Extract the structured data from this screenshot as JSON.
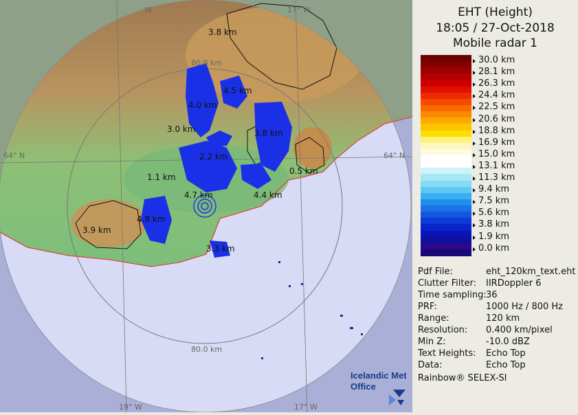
{
  "header": {
    "line1": "EHT (Height)",
    "line2": "18:05 / 27-Oct-2018",
    "line3": "Mobile radar 1"
  },
  "legend": {
    "labels": [
      "30.0 km",
      "28.1 km",
      "26.3 km",
      "24.4 km",
      "22.5 km",
      "20.6 km",
      "18.8 km",
      "16.9 km",
      "15.0 km",
      "13.1 km",
      "11.3 km",
      "9.4 km",
      "7.5 km",
      "5.6 km",
      "3.8 km",
      "1.9 km",
      "0.0 km"
    ],
    "colors": [
      "#6b0000",
      "#830000",
      "#9d0000",
      "#b40000",
      "#cc0000",
      "#e01000",
      "#ee2a00",
      "#f54a00",
      "#fa6a00",
      "#fc8a00",
      "#fda800",
      "#fdc400",
      "#fede00",
      "#fef07c",
      "#fdf7bf",
      "#fefbe2",
      "#ffffff",
      "#ffffff",
      "#cef4fa",
      "#a8e8f6",
      "#84dcf4",
      "#5fc8f2",
      "#3ab0f0",
      "#2290ea",
      "#1a72e6",
      "#1456de",
      "#0e3ad6",
      "#0a24c8",
      "#0a14b8",
      "#10109c",
      "#2a0a8a",
      "#1a0878"
    ]
  },
  "map": {
    "labels": {
      "lon_19": "19° W",
      "lon_17": "17° W",
      "lon_19_top": "W",
      "lon_17_top": "17° W",
      "lat_64_left": "64° N",
      "lat_64_right": "64° N",
      "range_top": "80.0 km",
      "range_bottom": "80.0 km"
    },
    "echo_heights": [
      "3.8 km",
      "4.5 km",
      "4.0 km",
      "3.0 km",
      "3.8 km",
      "2.2 km",
      "0.5 km",
      "1.1 km",
      "4.7 km",
      "4.4 km",
      "4.8 km",
      "3.9 km",
      "3.3 km"
    ],
    "logo": {
      "line1": "Icelandic Met",
      "line2": "Office"
    }
  },
  "info": [
    {
      "key": "Pdf File:",
      "value": "eht_120km_text.eht"
    },
    {
      "key": "Clutter Filter:",
      "value": "IIRDoppler 6"
    },
    {
      "key": "Time sampling:",
      "value": "36"
    },
    {
      "key": "PRF:",
      "value": "1000 Hz / 800 Hz"
    },
    {
      "key": "Range:",
      "value": "120 km"
    },
    {
      "key": "Resolution:",
      "value": "0.400 km/pixel"
    },
    {
      "key": "Min Z:",
      "value": "-10.0 dBZ"
    },
    {
      "key": "Text Heights:",
      "value": "Echo Top"
    },
    {
      "key": "Data:",
      "value": "Echo Top"
    }
  ],
  "credit": "Rainbow® SELEX-SI",
  "colors": {
    "sea": "#a9afd6",
    "sea_in_range": "#d7dbf5",
    "lowland": "#7bbf7a",
    "highland": "#c89a5a",
    "echo": "#1a30e6",
    "coast": "#d44"
  }
}
